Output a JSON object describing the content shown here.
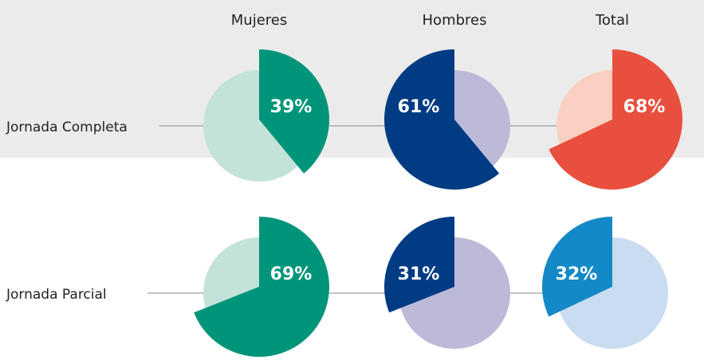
{
  "chart_data": {
    "type": "pie_grid",
    "columns": [
      "Mujeres",
      "Hombres",
      "Total"
    ],
    "series": [
      {
        "name": "Jornada Completa",
        "values": [
          39,
          61,
          68
        ],
        "value_labels": [
          "39%",
          "61%",
          "68%"
        ],
        "clockwise": [
          true,
          false,
          true
        ],
        "colors": [
          [
            "#00957a",
            "#c3e2d9"
          ],
          [
            "#003b84",
            "#bcbad8"
          ],
          [
            "#e94f3f",
            "#f9d0c1"
          ]
        ]
      },
      {
        "name": "Jornada Parcial",
        "values": [
          69,
          31,
          32
        ],
        "value_labels": [
          "69%",
          "31%",
          "32%"
        ],
        "clockwise": [
          true,
          false,
          false
        ],
        "colors": [
          [
            "#00957a",
            "#c3e2d9"
          ],
          [
            "#003b84",
            "#bcbad8"
          ],
          [
            "#1489c7",
            "#cadcef"
          ]
        ]
      }
    ]
  }
}
